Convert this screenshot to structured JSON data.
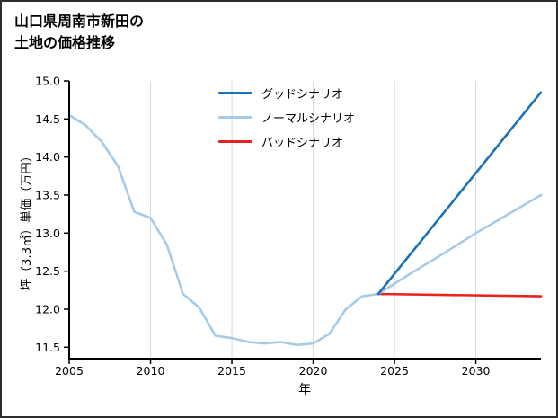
{
  "header": {
    "title_line1": "山口県周南市新田の",
    "title_line2": "土地の価格推移"
  },
  "chart_data": {
    "type": "line",
    "title": "山口県周南市新田の土地の価格推移",
    "xlabel": "年",
    "ylabel": "坪（3.3㎡）単価（万円）",
    "xlim": [
      2005,
      2034
    ],
    "ylim": [
      11.35,
      15.0
    ],
    "grid": "vertical-only",
    "grid_color": "#d8d8d8",
    "axis_color": "#000000",
    "legend_position": "upper-left-inside",
    "xticks": [
      {
        "value": 2005,
        "label": "2005"
      },
      {
        "value": 2010,
        "label": "2010"
      },
      {
        "value": 2015,
        "label": "2015"
      },
      {
        "value": 2020,
        "label": "2020"
      },
      {
        "value": 2025,
        "label": "2025"
      },
      {
        "value": 2030,
        "label": "2030"
      }
    ],
    "yticks": [
      {
        "value": 11.5,
        "label": "11.5"
      },
      {
        "value": 12.0,
        "label": "12.0"
      },
      {
        "value": 12.5,
        "label": "12.5"
      },
      {
        "value": 13.0,
        "label": "13.0"
      },
      {
        "value": 13.5,
        "label": "13.5"
      },
      {
        "value": 14.0,
        "label": "14.0"
      },
      {
        "value": 14.5,
        "label": "14.5"
      },
      {
        "value": 15.0,
        "label": "15.0"
      }
    ],
    "series": [
      {
        "name": "グッドシナリオ",
        "color": "#1b72b8",
        "in_legend": true,
        "x": [
          2024,
          2034
        ],
        "y": [
          12.2,
          14.85
        ]
      },
      {
        "name": "ノーマルシナリオ",
        "color": "#a6cbe8",
        "in_legend": true,
        "x": [
          2024,
          2026,
          2028,
          2030,
          2032,
          2034
        ],
        "y": [
          12.2,
          12.47,
          12.73,
          13.0,
          13.25,
          13.5
        ]
      },
      {
        "name": "バッドシナリオ",
        "color": "#e8241f",
        "in_legend": true,
        "x": [
          2024,
          2034
        ],
        "y": [
          12.2,
          12.17
        ]
      },
      {
        "name": "historical",
        "color": "#a6cbe8",
        "in_legend": false,
        "x": [
          2005,
          2006,
          2007,
          2008,
          2009,
          2010,
          2011,
          2012,
          2013,
          2014,
          2015,
          2016,
          2017,
          2018,
          2019,
          2020,
          2021,
          2022,
          2023,
          2024
        ],
        "y": [
          14.55,
          14.42,
          14.2,
          13.88,
          13.28,
          13.2,
          12.85,
          12.2,
          12.02,
          11.65,
          11.62,
          11.57,
          11.55,
          11.57,
          11.53,
          11.55,
          11.68,
          12.0,
          12.17,
          12.2
        ]
      }
    ]
  }
}
